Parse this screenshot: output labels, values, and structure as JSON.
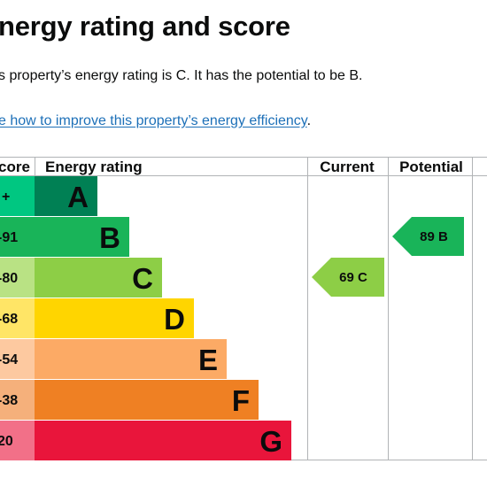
{
  "heading": "nergy rating and score",
  "summary": "s property’s energy rating is C. It has the potential to be B.",
  "improve_link": "e how to improve this property’s energy efficiency",
  "improve_link_suffix": ".",
  "table": {
    "col_score": "core",
    "col_rating": "Energy rating",
    "col_current": "Current",
    "col_potential": "Potential"
  },
  "bands": [
    {
      "score": "+",
      "letter": "A",
      "color": "#008054",
      "score_bg": "#00c781"
    },
    {
      "score": "-91",
      "letter": "B",
      "color": "#19b459",
      "score_bg": "#19b459"
    },
    {
      "score": "-80",
      "letter": "C",
      "color": "#8dce46",
      "score_bg": "#b9e284"
    },
    {
      "score": "-68",
      "letter": "D",
      "color": "#ffd500",
      "score_bg": "#ffe566"
    },
    {
      "score": "-54",
      "letter": "E",
      "color": "#fcaa65",
      "score_bg": "#fdc9a0"
    },
    {
      "score": "-38",
      "letter": "F",
      "color": "#ef8023",
      "score_bg": "#f5b07b"
    },
    {
      "score": "20",
      "letter": "G",
      "color": "#e9153b",
      "score_bg": "#f27088"
    }
  ],
  "current": {
    "score": 69,
    "band": "C",
    "label": "69 C",
    "color": "#8dce46"
  },
  "potential": {
    "score": 89,
    "band": "B",
    "label": "89 B",
    "color": "#19b459"
  }
}
